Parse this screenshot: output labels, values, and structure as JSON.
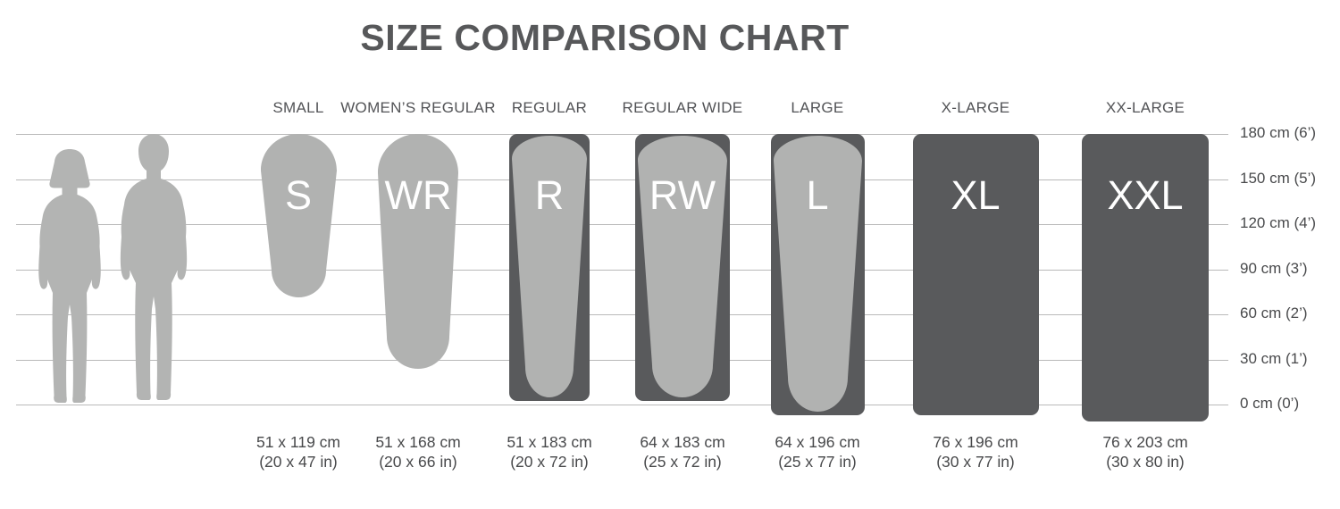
{
  "page": {
    "title": "SIZE COMPARISON CHART"
  },
  "colors": {
    "background": "#ffffff",
    "pad_light": "#b1b2b1",
    "pad_dark": "#595a5c",
    "silhouette": "#b3b4b3",
    "grid_line": "#b9b9b9",
    "title_text": "#57585a",
    "header_text": "#525356",
    "value_text": "#48494b",
    "letter_text": "#ffffff"
  },
  "chart_data": {
    "type": "table",
    "title": "SIZE COMPARISON CHART",
    "categories": [
      "SMALL",
      "WOMEN’S REGULAR",
      "REGULAR",
      "REGULAR WIDE",
      "LARGE",
      "X-LARGE",
      "XX-LARGE"
    ],
    "items": [
      {
        "label": "SMALL",
        "code": "S",
        "width_cm": 51,
        "length_cm": 119,
        "width_in": 20,
        "length_in": 47,
        "dims_cm": "51 x 119 cm",
        "dims_in": "(20 x 47 in)",
        "fill": "light"
      },
      {
        "label": "WOMEN’S REGULAR",
        "code": "WR",
        "width_cm": 51,
        "length_cm": 168,
        "width_in": 20,
        "length_in": 66,
        "dims_cm": "51 x 168 cm",
        "dims_in": "(20 x 66 in)",
        "fill": "light"
      },
      {
        "label": "REGULAR",
        "code": "R",
        "width_cm": 51,
        "length_cm": 183,
        "width_in": 20,
        "length_in": 72,
        "dims_cm": "51 x 183 cm",
        "dims_in": "(20 x 72 in)",
        "fill": "framed"
      },
      {
        "label": "REGULAR WIDE",
        "code": "RW",
        "width_cm": 64,
        "length_cm": 183,
        "width_in": 25,
        "length_in": 72,
        "dims_cm": "64 x 183 cm",
        "dims_in": "(25 x 72 in)",
        "fill": "framed"
      },
      {
        "label": "LARGE",
        "code": "L",
        "width_cm": 64,
        "length_cm": 196,
        "width_in": 25,
        "length_in": 77,
        "dims_cm": "64 x 196 cm",
        "dims_in": "(25 x 77 in)",
        "fill": "framed"
      },
      {
        "label": "X-LARGE",
        "code": "XL",
        "width_cm": 76,
        "length_cm": 196,
        "width_in": 30,
        "length_in": 77,
        "dims_cm": "76 x 196 cm",
        "dims_in": "(30 x 77 in)",
        "fill": "dark"
      },
      {
        "label": "XX-LARGE",
        "code": "XXL",
        "width_cm": 76,
        "length_cm": 203,
        "width_in": 30,
        "length_in": 80,
        "dims_cm": "76 x 203 cm",
        "dims_in": "(30 x 80 in)",
        "fill": "dark"
      }
    ],
    "y_axis": {
      "gridlines_cm": [
        180,
        150,
        120,
        90,
        60,
        30,
        0
      ],
      "tick_labels": [
        "180 cm (6’)",
        "150 cm (5’)",
        "120 cm (4’)",
        "90 cm (3’)",
        "60 cm (2’)",
        "30 cm (1’)",
        "0 cm (0’)"
      ]
    },
    "figures": [
      "woman-silhouette",
      "man-silhouette"
    ],
    "legend": "none",
    "grid": "horizontal lines every 30 cm"
  }
}
